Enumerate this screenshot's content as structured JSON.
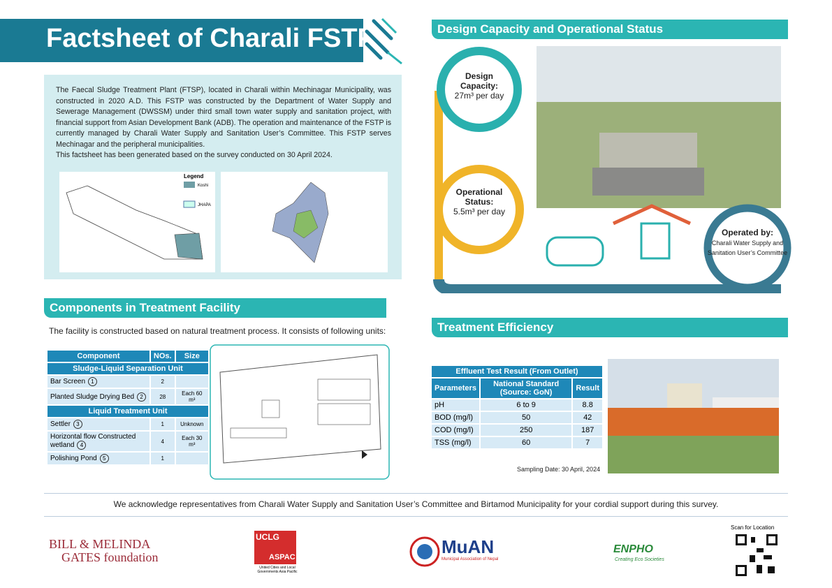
{
  "header": {
    "title": "Factsheet of Charali FSTP"
  },
  "intro": {
    "paragraphs": [
      "The Faecal Sludge Treatment Plant (FTSP), located in Charali within Mechinagar Municipality, was constructed in 2020 A.D. This FSTP was constructed by the Department of Water Supply and Sewerage Management (DWSSM) under third small town water supply and sanitation project, with financial support from Asian Development Bank (ADB). The operation and maintenance of the FSTP is currently managed by Charali Water Supply and Sanitation User’s Committee. This FSTP serves Mechinagar and the peripheral municipalities.",
      "This factsheet has been generated based on the survey conducted on 30 April 2024."
    ],
    "map_legend": {
      "title": "Legend",
      "items": [
        "Koshi",
        "JHAPA"
      ]
    }
  },
  "capacity": {
    "title": "Design Capacity and Operational Status",
    "design_label": "Design Capacity:",
    "design_value": "27m³ per day",
    "operational_label": "Operational Status:",
    "operational_value": "5.5m³ per day",
    "operator_label": "Operated by:",
    "operator_value": "Charali Water Supply and Sanitation User’s Committee"
  },
  "components": {
    "title": "Components in Treatment Facility",
    "intro": "The facility is constructed based on natural treatment process. It consists of following units:",
    "table": {
      "headers": [
        "Component",
        "NOs.",
        "Size"
      ],
      "sections": [
        {
          "title": "Sludge-Liquid Separation Unit",
          "rows": [
            {
              "name": "Bar Screen",
              "badge": 1,
              "count": 2
            },
            {
              "name": "Planted Sludge Drying Bed",
              "badge": 2,
              "count": 28,
              "size": "Each 60 m³"
            }
          ]
        },
        {
          "title": "Liquid Treatment Unit",
          "rows": [
            {
              "name": "Settler",
              "badge": 3,
              "count": 1,
              "size": "Unknown"
            },
            {
              "name": "Horizontal flow Constructed wetland",
              "badge": 4,
              "count": 4,
              "size": "Each 30 m³"
            },
            {
              "name": "Polishing Pond",
              "badge": 5,
              "count": 1
            }
          ]
        }
      ]
    }
  },
  "efficiency": {
    "title": "Treatment Efficiency",
    "table": {
      "caption": "Effluent Test Result (From Outlet)",
      "headers": [
        "Parameters",
        "National Standard (Source: GoN)",
        "Result"
      ],
      "rows": [
        [
          "pH",
          "6 to 9",
          8.8
        ],
        [
          "BOD (mg/l)",
          50,
          42
        ],
        [
          "COD (mg/l)",
          250,
          187
        ],
        [
          "TSS (mg/l)",
          60,
          7
        ]
      ]
    },
    "sampling_date": "Sampling Date: 30 April, 2024"
  },
  "acknowledgement": "We acknowledge representatives from Charali Water Supply and Sanitation User’s Committee and Birtamod Municipality for your cordial support during this survey.",
  "footer": {
    "gates": [
      "BILL & MELINDA",
      "GATES foundation"
    ],
    "uclg": [
      "UCLG",
      "ASPAC",
      "United Cities and Local Governments Asia Pacific"
    ],
    "muan": [
      "MuAN",
      "Municipal Association of Nepal"
    ],
    "enpho": [
      "ENPHO",
      "Creating Eco Societies"
    ],
    "qr_label": "Scan for Location"
  }
}
